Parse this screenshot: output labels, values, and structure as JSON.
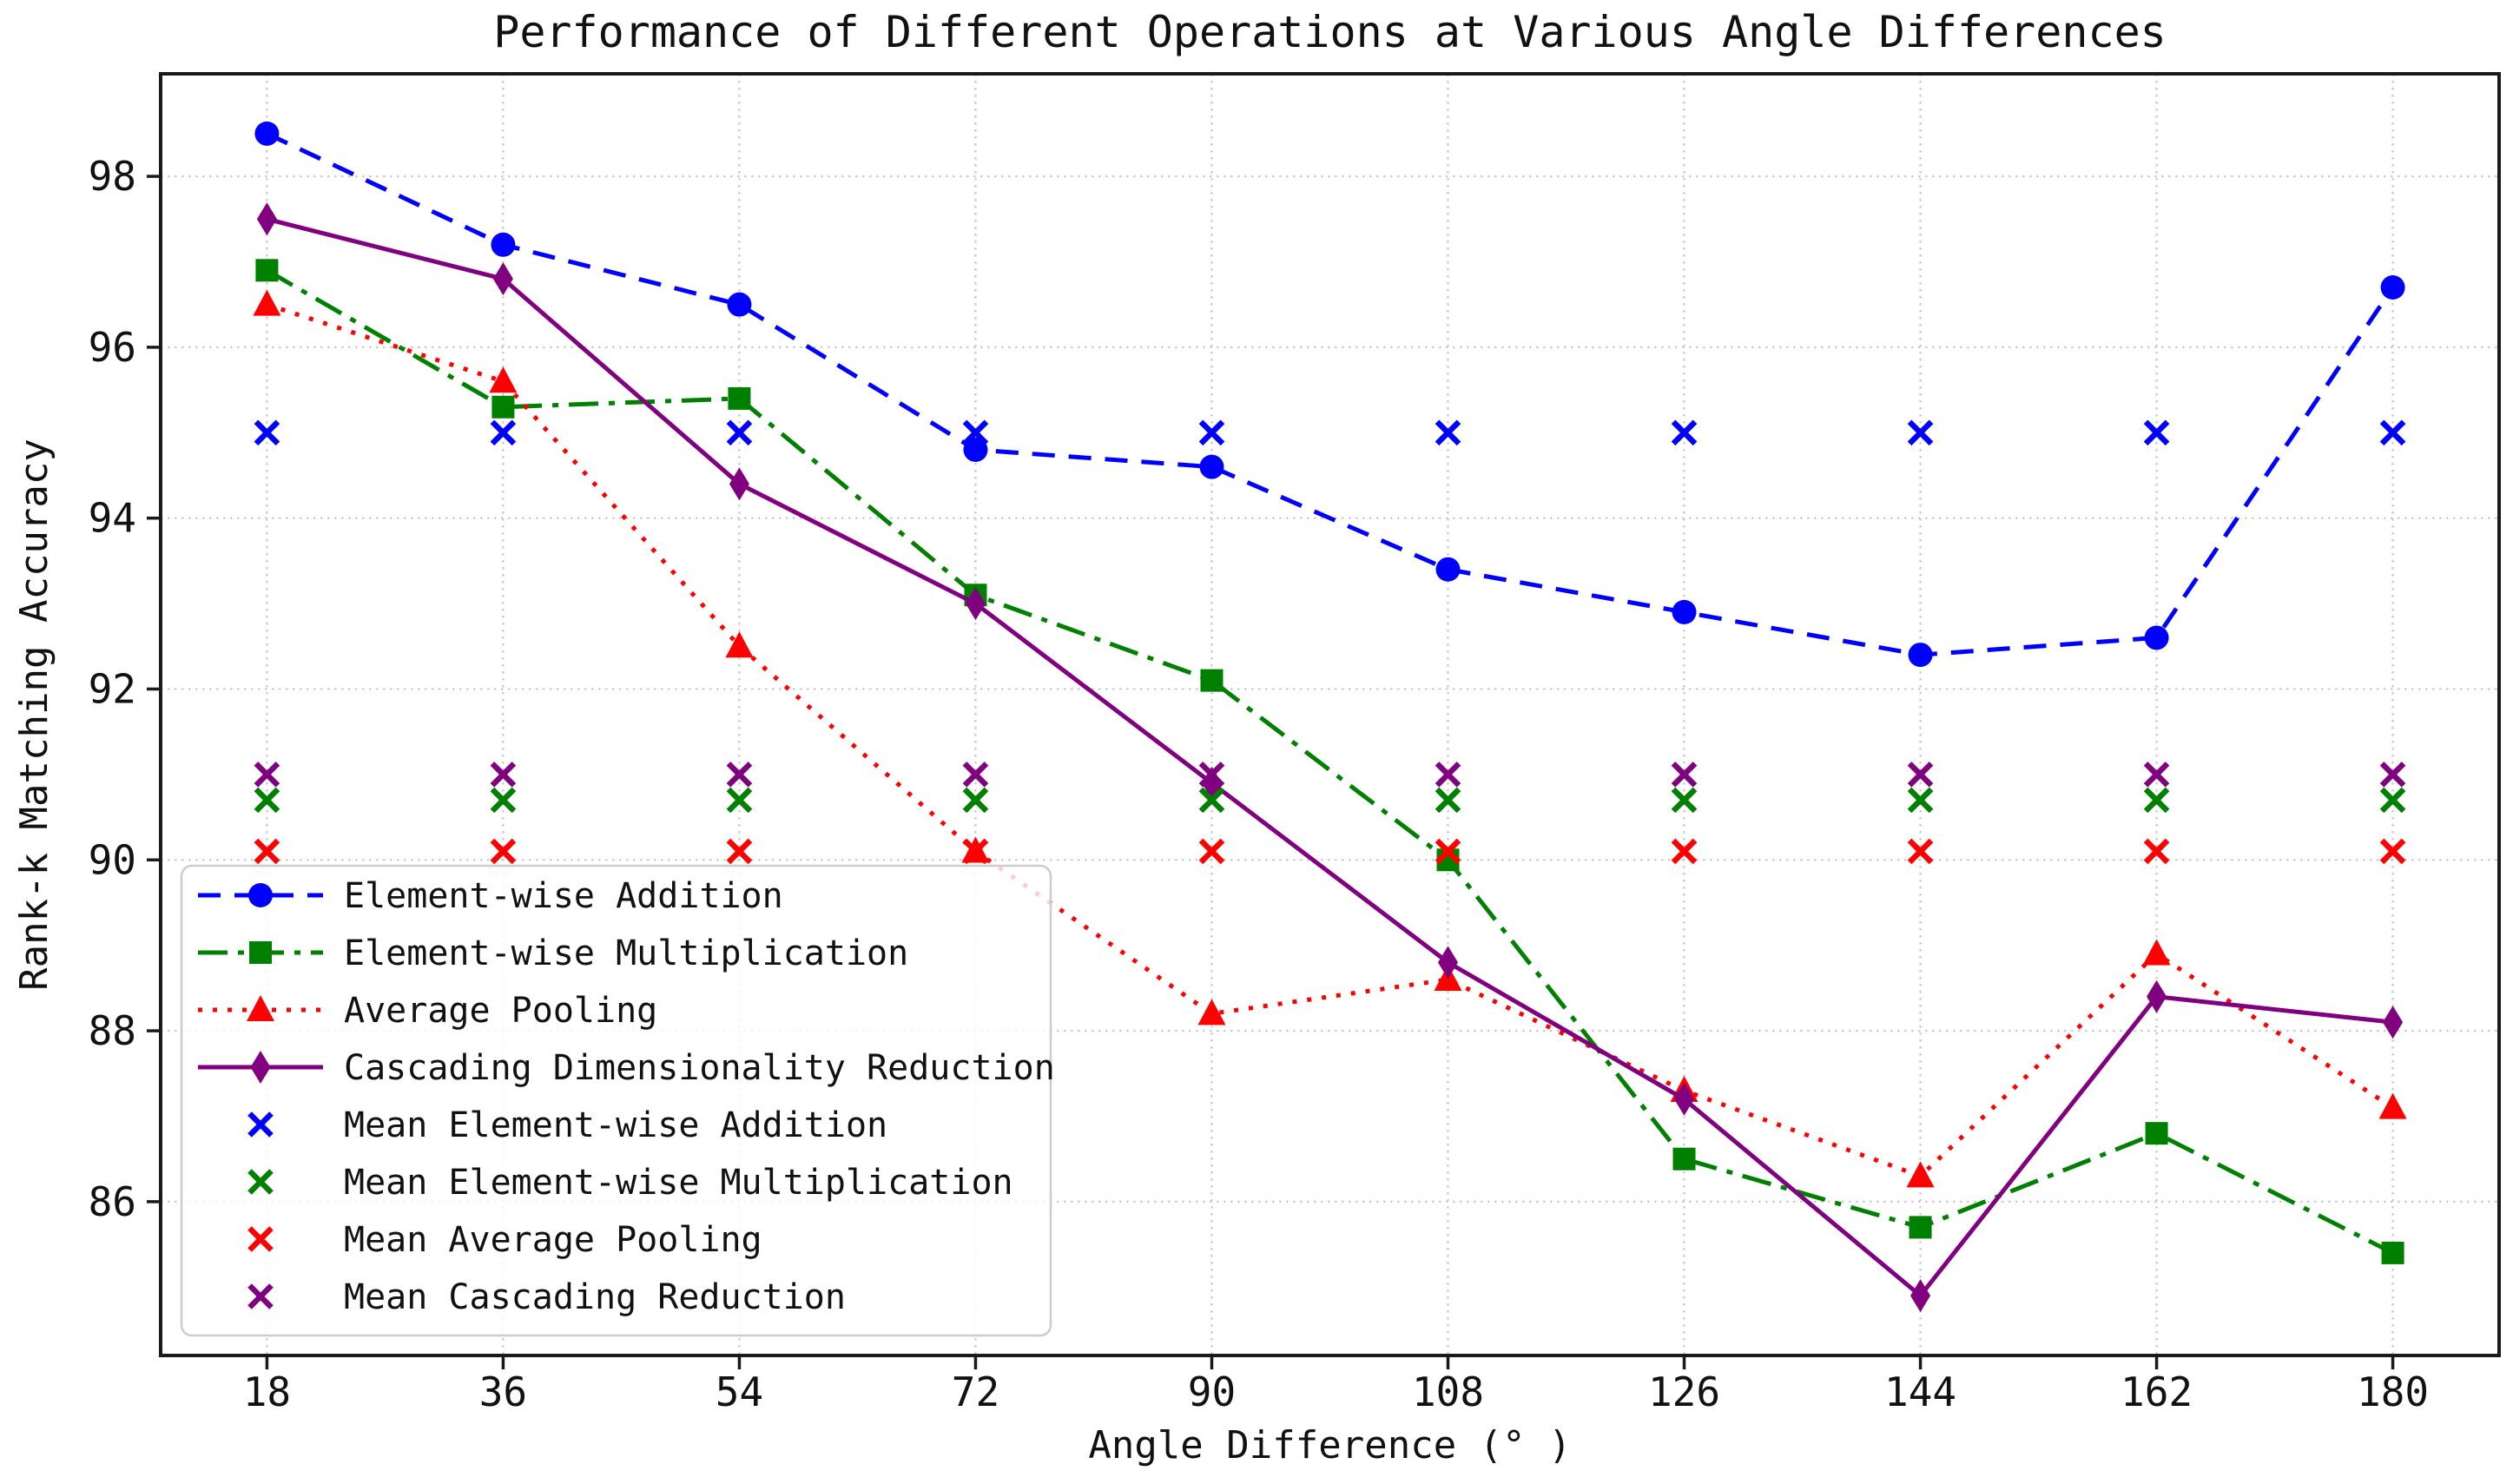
{
  "chart_data": {
    "type": "line",
    "title": "Performance of Different Operations at Various Angle Differences",
    "xlabel": "Angle Difference (° )",
    "ylabel": "Rank-k Matching Accuracy",
    "x": [
      18,
      36,
      54,
      72,
      90,
      108,
      126,
      144,
      162,
      180
    ],
    "xticks": [
      18,
      36,
      54,
      72,
      90,
      108,
      126,
      144,
      162,
      180
    ],
    "yticks": [
      86,
      88,
      90,
      92,
      94,
      96,
      98
    ],
    "xlim": [
      9.9,
      188.1
    ],
    "ylim": [
      84.2,
      99.2
    ],
    "grid": true,
    "grid_color": "#c6c6c6",
    "axis_color": "#1a1a1a",
    "legend_position": "lower left",
    "series": [
      {
        "name": "Element-wise Addition",
        "color": "#0000ff",
        "linestyle": "dashed",
        "marker": "circle",
        "values": [
          98.5,
          97.2,
          96.5,
          94.8,
          94.6,
          93.4,
          92.9,
          92.4,
          92.6,
          96.7
        ]
      },
      {
        "name": "Element-wise Multiplication",
        "color": "#008000",
        "linestyle": "dashdot",
        "marker": "square",
        "values": [
          96.9,
          95.3,
          95.4,
          93.1,
          92.1,
          90.0,
          86.5,
          85.7,
          86.8,
          85.4
        ]
      },
      {
        "name": "Average Pooling",
        "color": "#ff0000",
        "linestyle": "dotted",
        "marker": "triangle-up",
        "values": [
          96.5,
          95.6,
          92.5,
          90.1,
          88.2,
          88.6,
          87.3,
          86.3,
          88.9,
          87.1
        ]
      },
      {
        "name": "Cascading Dimensionality Reduction",
        "color": "#800080",
        "linestyle": "solid",
        "marker": "thin-diamond",
        "values": [
          97.5,
          96.8,
          94.4,
          93.0,
          90.9,
          88.8,
          87.2,
          84.9,
          88.4,
          88.1
        ]
      },
      {
        "name": "Mean Element-wise Addition",
        "color": "#0000ff",
        "linestyle": "none",
        "marker": "x",
        "mean_value": 95.0,
        "values": [
          95.0,
          95.0,
          95.0,
          95.0,
          95.0,
          95.0,
          95.0,
          95.0,
          95.0,
          95.0
        ]
      },
      {
        "name": "Mean Element-wise Multiplication",
        "color": "#008000",
        "linestyle": "none",
        "marker": "x",
        "mean_value": 90.7,
        "values": [
          90.7,
          90.7,
          90.7,
          90.7,
          90.7,
          90.7,
          90.7,
          90.7,
          90.7,
          90.7
        ]
      },
      {
        "name": "Mean Average Pooling",
        "color": "#ff0000",
        "linestyle": "none",
        "marker": "x",
        "mean_value": 90.1,
        "values": [
          90.1,
          90.1,
          90.1,
          90.1,
          90.1,
          90.1,
          90.1,
          90.1,
          90.1,
          90.1
        ]
      },
      {
        "name": "Mean Cascading Reduction",
        "color": "#800080",
        "linestyle": "none",
        "marker": "x",
        "mean_value": 91.0,
        "values": [
          91.0,
          91.0,
          91.0,
          91.0,
          91.0,
          91.0,
          91.0,
          91.0,
          91.0,
          91.0
        ]
      }
    ]
  }
}
